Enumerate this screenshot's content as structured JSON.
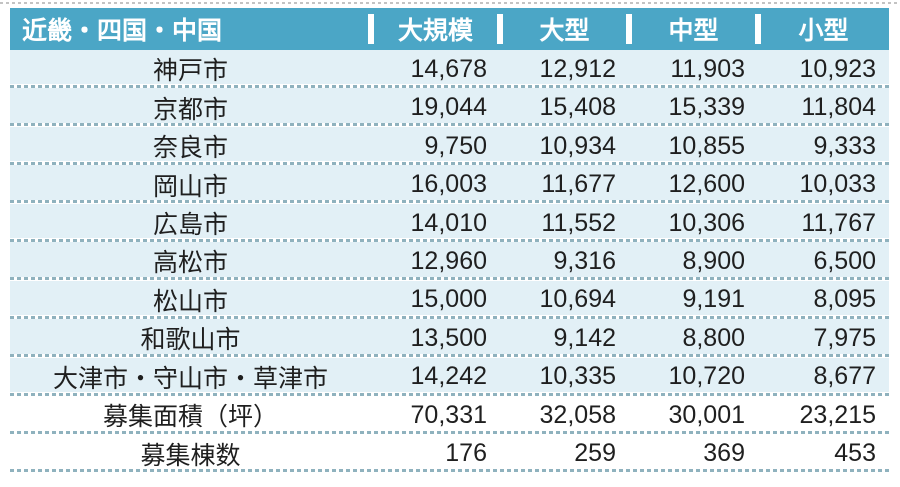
{
  "chart_data": {
    "type": "table",
    "title": "近畿・四国・中国",
    "columns": [
      "大規模",
      "大型",
      "中型",
      "小型"
    ],
    "rows": [
      {
        "label": "神戸市",
        "values": [
          "14,678",
          "12,912",
          "11,903",
          "10,923"
        ]
      },
      {
        "label": "京都市",
        "values": [
          "19,044",
          "15,408",
          "15,339",
          "11,804"
        ]
      },
      {
        "label": "奈良市",
        "values": [
          "9,750",
          "10,934",
          "10,855",
          "9,333"
        ]
      },
      {
        "label": "岡山市",
        "values": [
          "16,003",
          "11,677",
          "12,600",
          "10,033"
        ]
      },
      {
        "label": "広島市",
        "values": [
          "14,010",
          "11,552",
          "10,306",
          "11,767"
        ]
      },
      {
        "label": "高松市",
        "values": [
          "12,960",
          "9,316",
          "8,900",
          "6,500"
        ]
      },
      {
        "label": "松山市",
        "values": [
          "15,000",
          "10,694",
          "9,191",
          "8,095"
        ]
      },
      {
        "label": "和歌山市",
        "values": [
          "13,500",
          "9,142",
          "8,800",
          "7,975"
        ]
      },
      {
        "label": "大津市・守山市・草津市",
        "values": [
          "14,242",
          "10,335",
          "10,720",
          "8,677"
        ]
      }
    ],
    "summary_rows": [
      {
        "label": "募集面積（坪）",
        "values": [
          "70,331",
          "32,058",
          "30,001",
          "23,215"
        ]
      },
      {
        "label": "募集棟数",
        "values": [
          "176",
          "259",
          "369",
          "453"
        ]
      }
    ],
    "colors": {
      "header_bg": "#4BA6C6",
      "header_text": "#FFFFFF",
      "row_bg": "#E2F0F6",
      "summary_row_bg": "#FFFFFF",
      "separator": "#8FB2BE",
      "text": "#1F1F1F"
    },
    "layout": {
      "grid": "dashed row separators",
      "legend": "none"
    }
  }
}
